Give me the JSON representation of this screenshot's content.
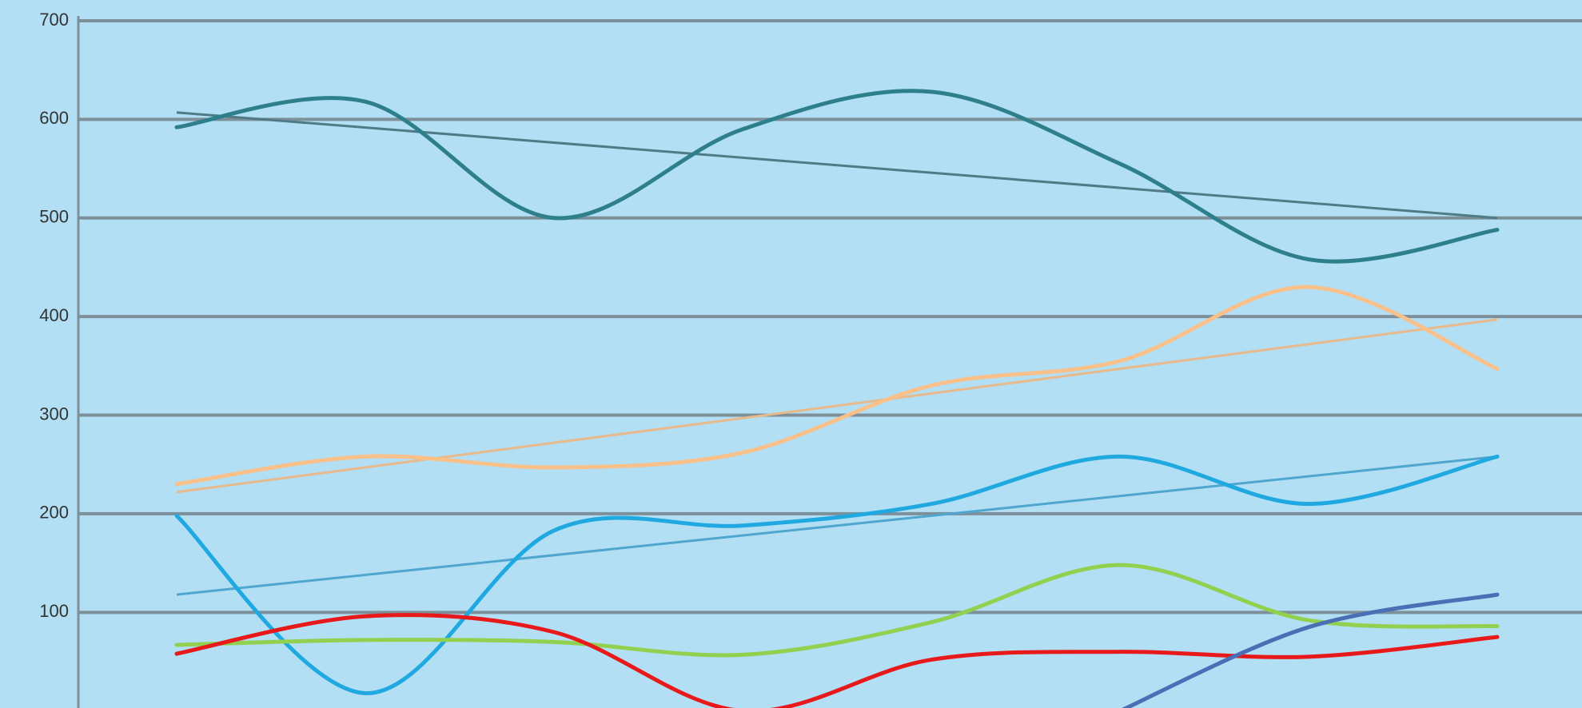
{
  "chart_data": {
    "type": "line",
    "ylim": [
      3,
      700
    ],
    "yticks": [
      100,
      200,
      300,
      400,
      500,
      600,
      700
    ],
    "grid": true,
    "smooth": true,
    "series": [
      {
        "color": "#2e7f8c",
        "values": [
          592,
          618,
          500,
          590,
          628,
          555,
          458,
          488
        ]
      },
      {
        "color": "#f9c08a",
        "values": [
          230,
          258,
          247,
          262,
          330,
          355,
          430,
          347
        ]
      },
      {
        "color": "#1fa9e0",
        "values": [
          198,
          18,
          183,
          188,
          210,
          258,
          210,
          258
        ]
      },
      {
        "color": "#92d050",
        "values": [
          67,
          72,
          70,
          57,
          90,
          148,
          92,
          86
        ]
      },
      {
        "color": "#e8191b",
        "values": [
          58,
          96,
          80,
          0,
          52,
          60,
          55,
          75
        ]
      },
      {
        "color": "#4a6fb5",
        "values": [
          null,
          null,
          null,
          null,
          null,
          0,
          85,
          118
        ]
      }
    ],
    "trendlines": [
      {
        "color": "#4f7a86",
        "values": [
          607,
          500
        ]
      },
      {
        "color": "#e8b98a",
        "values": [
          222,
          397
        ]
      },
      {
        "color": "#4fa6cf",
        "values": [
          118,
          258
        ]
      }
    ]
  }
}
